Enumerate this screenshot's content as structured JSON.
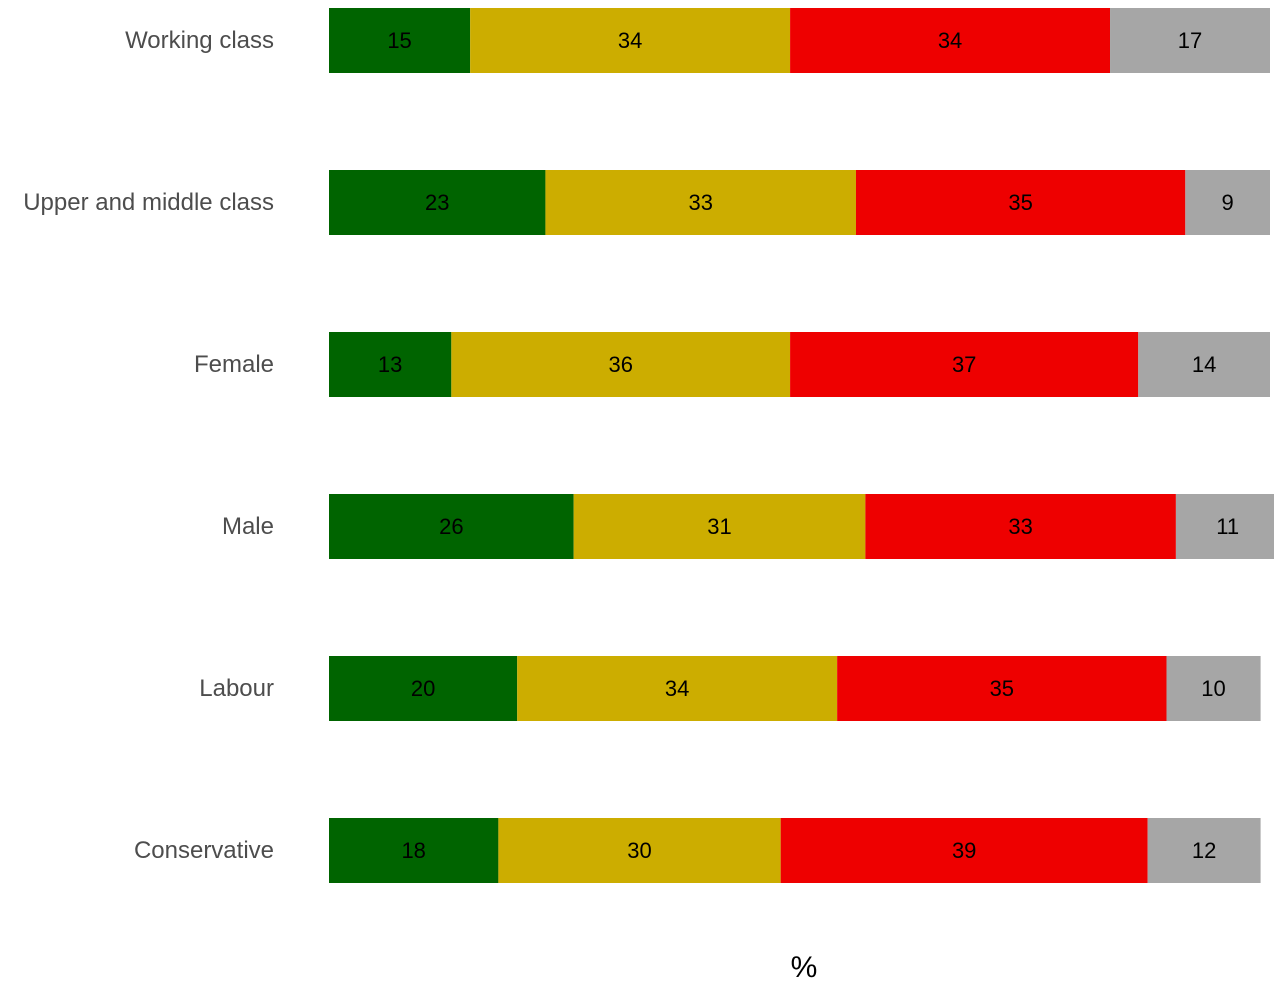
{
  "chart_data": {
    "type": "bar",
    "orientation": "horizontal",
    "stacked": true,
    "xlabel": "%",
    "ylabel": "",
    "title": "",
    "grid": false,
    "legend": "none",
    "categories": [
      "Working class",
      "Upper and middle class",
      "Female",
      "Male",
      "Labour",
      "Conservative"
    ],
    "series": [
      {
        "color": "#006400",
        "values": [
          15,
          23,
          13,
          26,
          20,
          18
        ]
      },
      {
        "color": "#ccad00",
        "values": [
          34,
          33,
          36,
          31,
          34,
          30
        ]
      },
      {
        "color": "#ee0000",
        "values": [
          34,
          35,
          37,
          33,
          35,
          39
        ]
      },
      {
        "color": "#a6a6a6",
        "values": [
          17,
          9,
          14,
          11,
          10,
          12
        ]
      }
    ]
  }
}
